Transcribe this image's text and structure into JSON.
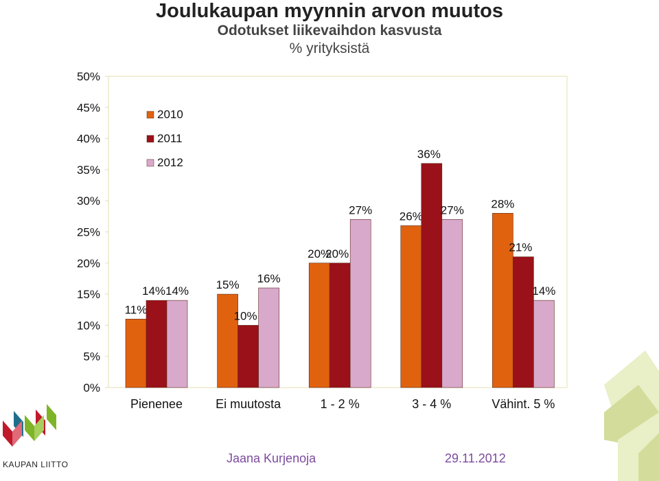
{
  "header": {
    "title": "Joulukaupan myynnin arvon muutos",
    "subtitle": "Odotukset liikevaihdon kasvusta",
    "unit_label": "% yrityksistä"
  },
  "footer": {
    "author": "Jaana Kurjenoja",
    "date": "29.11.2012",
    "logo_text": "KAUPAN LIITTO"
  },
  "colors": {
    "s2010": "#e0620f",
    "s2011": "#9b1119",
    "s2012": "#d9a9cc",
    "deco_light": "#e9efc7",
    "deco_mid": "#d3dc9a",
    "logo_red": "#c0192c",
    "logo_green": "#7fb428",
    "logo_teal": "#1f6f8b"
  },
  "chart_data": {
    "type": "bar",
    "title": "Joulukaupan myynnin arvon muutos",
    "subtitle": "Odotukset liikevaihdon kasvusta",
    "ylabel": "",
    "xlabel": "",
    "categories": [
      "Pienenee",
      "Ei muutosta",
      "1 - 2 %",
      "3 - 4 %",
      "Vähint. 5 %"
    ],
    "series": [
      {
        "name": "2010",
        "values": [
          11,
          15,
          20,
          26,
          28
        ],
        "labels": [
          "11%",
          "15%",
          "20%",
          "26%",
          "28%"
        ]
      },
      {
        "name": "2011",
        "values": [
          14,
          10,
          20,
          36,
          21
        ],
        "labels": [
          "14%",
          "10%",
          "20%",
          "36%",
          "21%"
        ]
      },
      {
        "name": "2012",
        "values": [
          14,
          16,
          27,
          27,
          14
        ],
        "labels": [
          "14%",
          "16%",
          "27%",
          "27%",
          "14%"
        ]
      }
    ],
    "ylim": [
      0,
      50
    ],
    "yticks": [
      0,
      5,
      10,
      15,
      20,
      25,
      30,
      35,
      40,
      45,
      50
    ],
    "ytick_labels": [
      "0%",
      "5%",
      "10%",
      "15%",
      "20%",
      "25%",
      "30%",
      "35%",
      "40%",
      "45%",
      "50%"
    ],
    "grid": false,
    "legend_position": "top-left"
  }
}
